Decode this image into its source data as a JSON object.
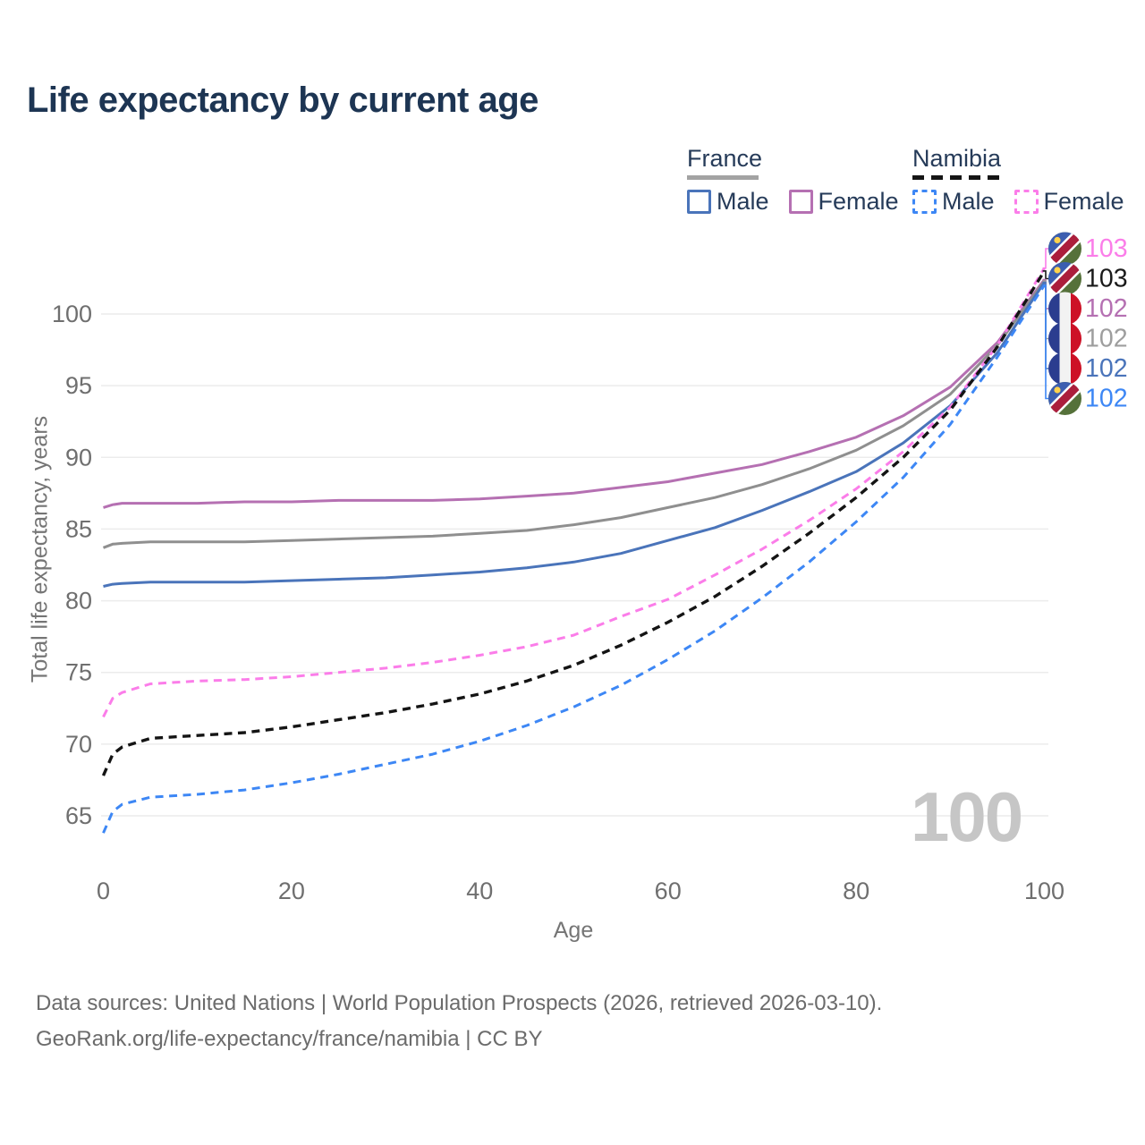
{
  "header": {
    "title": "Life expectancy by current age"
  },
  "legend": {
    "groups": [
      {
        "name": "France",
        "line_style": "solid",
        "line_color": "#a3a3a3",
        "items": [
          {
            "label": "Male",
            "color": "#4a74ba",
            "dashed": false
          },
          {
            "label": "Female",
            "color": "#b570b2",
            "dashed": false
          }
        ]
      },
      {
        "name": "Namibia",
        "line_style": "dashed",
        "line_color": "#151515",
        "items": [
          {
            "label": "Male",
            "color": "#3d87f5",
            "dashed": true
          },
          {
            "label": "Female",
            "color": "#fb7de9",
            "dashed": true
          }
        ]
      }
    ]
  },
  "chart_data": {
    "type": "line",
    "title": "Life expectancy by current age",
    "xlabel": "Age",
    "ylabel": "Total life expectancy, years",
    "xlim": [
      0,
      100
    ],
    "ylim": [
      63,
      104
    ],
    "xticks": [
      0,
      20,
      40,
      60,
      80,
      100
    ],
    "yticks": [
      65,
      70,
      75,
      80,
      85,
      90,
      95,
      100
    ],
    "grid": "horizontal",
    "legend_position": "top-right",
    "watermark": "100",
    "ages": [
      0,
      1,
      2,
      5,
      10,
      15,
      20,
      25,
      30,
      35,
      40,
      45,
      50,
      55,
      60,
      65,
      70,
      75,
      80,
      85,
      90,
      95,
      100
    ],
    "series": [
      {
        "name": "France Female",
        "country": "France",
        "sex": "Female",
        "color": "#b570b2",
        "dashed": false,
        "values": [
          86.5,
          86.7,
          86.8,
          86.8,
          86.8,
          86.9,
          86.9,
          87.0,
          87.0,
          87.0,
          87.1,
          87.3,
          87.5,
          87.9,
          88.3,
          88.9,
          89.5,
          90.4,
          91.4,
          92.9,
          94.9,
          98.0,
          102.4
        ]
      },
      {
        "name": "France Both sexes",
        "country": "France",
        "sex": "Both",
        "color": "#8f8f8f",
        "dashed": false,
        "values": [
          83.7,
          83.95,
          84.0,
          84.1,
          84.1,
          84.1,
          84.2,
          84.3,
          84.4,
          84.5,
          84.7,
          84.9,
          85.3,
          85.8,
          86.5,
          87.2,
          88.1,
          89.2,
          90.5,
          92.2,
          94.4,
          97.8,
          102.3
        ]
      },
      {
        "name": "France Male",
        "country": "France",
        "sex": "Male",
        "color": "#4a74ba",
        "dashed": false,
        "values": [
          81.0,
          81.15,
          81.2,
          81.3,
          81.3,
          81.3,
          81.4,
          81.5,
          81.6,
          81.8,
          82.0,
          82.3,
          82.7,
          83.3,
          84.2,
          85.1,
          86.3,
          87.6,
          89.0,
          91.0,
          93.6,
          97.3,
          102.2
        ]
      },
      {
        "name": "Namibia Female",
        "country": "Namibia",
        "sex": "Female",
        "color": "#fb7de9",
        "dashed": true,
        "values": [
          71.9,
          73.2,
          73.6,
          74.2,
          74.4,
          74.5,
          74.7,
          75.0,
          75.3,
          75.7,
          76.2,
          76.8,
          77.6,
          78.9,
          80.1,
          81.8,
          83.6,
          85.6,
          87.8,
          90.4,
          93.5,
          97.8,
          103.2
        ]
      },
      {
        "name": "Namibia Both sexes",
        "country": "Namibia",
        "sex": "Both",
        "color": "#141414",
        "dashed": true,
        "values": [
          67.8,
          69.3,
          69.8,
          70.4,
          70.6,
          70.8,
          71.2,
          71.7,
          72.2,
          72.8,
          73.5,
          74.4,
          75.5,
          76.9,
          78.5,
          80.3,
          82.4,
          84.7,
          87.2,
          90.0,
          93.3,
          97.7,
          103.0
        ]
      },
      {
        "name": "Namibia Male",
        "country": "Namibia",
        "sex": "Male",
        "color": "#3d87f5",
        "dashed": true,
        "values": [
          63.8,
          65.3,
          65.8,
          66.3,
          66.5,
          66.8,
          67.3,
          67.9,
          68.6,
          69.3,
          70.2,
          71.3,
          72.6,
          74.1,
          75.9,
          77.9,
          80.2,
          82.7,
          85.5,
          88.6,
          92.3,
          97.0,
          102.0
        ]
      }
    ],
    "end_labels": [
      {
        "label": "103",
        "series": "Namibia Female",
        "flag": "namibia",
        "color": "#fb7de9"
      },
      {
        "label": "103",
        "series": "Namibia Both sexes",
        "flag": "namibia",
        "color": "#1a1a1a"
      },
      {
        "label": "102",
        "series": "France Female",
        "flag": "france",
        "color": "#b570b2"
      },
      {
        "label": "102",
        "series": "France Both sexes",
        "flag": "france",
        "color": "#9e9e9e"
      },
      {
        "label": "102",
        "series": "France Male",
        "flag": "france",
        "color": "#4a74ba"
      },
      {
        "label": "102",
        "series": "Namibia Male",
        "flag": "namibia",
        "color": "#3d87f5"
      }
    ]
  },
  "footer": {
    "line1": "Data sources: United Nations | World Population Prospects (2026, retrieved 2026-03-10).",
    "line2": "GeoRank.org/life-expectancy/france/namibia | CC BY"
  }
}
